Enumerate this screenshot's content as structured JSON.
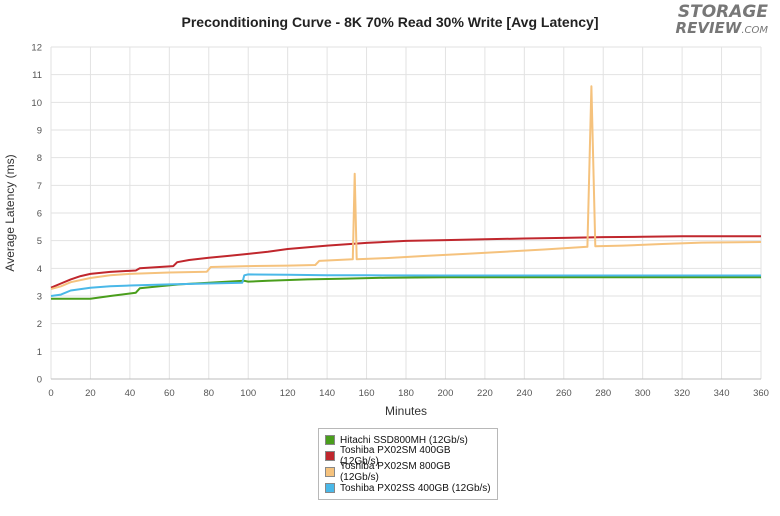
{
  "chart_data": {
    "type": "line",
    "title": "Preconditioning Curve - 8K 70% Read 30% Write [Avg Latency]",
    "xlabel": "Minutes",
    "ylabel": "Average Latency (ms)",
    "xlim": [
      0,
      360
    ],
    "ylim": [
      0,
      12
    ],
    "xticks": [
      0,
      20,
      40,
      60,
      80,
      100,
      120,
      140,
      160,
      180,
      200,
      220,
      240,
      260,
      280,
      300,
      320,
      340,
      360
    ],
    "yticks": [
      0,
      1,
      2,
      3,
      4,
      5,
      6,
      7,
      8,
      9,
      10,
      11,
      12
    ],
    "grid": true,
    "legend_position": "bottom-center",
    "series": [
      {
        "name": "Hitachi SSD800MH (12Gb/s)",
        "color": "#4a9e1c",
        "x": [
          0,
          10,
          20,
          30,
          43,
          45,
          55,
          65,
          80,
          90,
          98,
          100,
          110,
          130,
          150,
          170,
          200,
          240,
          280,
          320,
          360
        ],
        "y": [
          2.9,
          2.9,
          2.9,
          3.0,
          3.12,
          3.28,
          3.35,
          3.42,
          3.48,
          3.52,
          3.55,
          3.52,
          3.55,
          3.6,
          3.63,
          3.66,
          3.68,
          3.68,
          3.68,
          3.68,
          3.68
        ]
      },
      {
        "name": "Toshiba PX02SM 400GB (12Gb/s)",
        "color": "#c0272d",
        "x": [
          0,
          5,
          10,
          15,
          20,
          30,
          43,
          45,
          55,
          62,
          64,
          70,
          80,
          90,
          100,
          110,
          120,
          140,
          160,
          180,
          200,
          220,
          240,
          260,
          280,
          300,
          320,
          340,
          360
        ],
        "y": [
          3.3,
          3.45,
          3.6,
          3.72,
          3.8,
          3.87,
          3.92,
          4.0,
          4.05,
          4.08,
          4.22,
          4.3,
          4.38,
          4.45,
          4.52,
          4.6,
          4.7,
          4.82,
          4.92,
          4.99,
          5.02,
          5.05,
          5.08,
          5.1,
          5.13,
          5.14,
          5.16,
          5.16,
          5.16
        ]
      },
      {
        "name": "Toshiba PX02SM 800GB (12Gb/s)",
        "color": "#f5c27d",
        "x": [
          0,
          5,
          10,
          20,
          30,
          40,
          60,
          79,
          81,
          100,
          120,
          134,
          136,
          153,
          154,
          155,
          170,
          190,
          210,
          230,
          250,
          272,
          274,
          276,
          290,
          310,
          330,
          360
        ],
        "y": [
          3.25,
          3.35,
          3.5,
          3.65,
          3.75,
          3.8,
          3.85,
          3.88,
          4.05,
          4.08,
          4.1,
          4.12,
          4.27,
          4.33,
          7.42,
          4.33,
          4.37,
          4.45,
          4.52,
          4.6,
          4.68,
          4.78,
          10.58,
          4.8,
          4.82,
          4.88,
          4.93,
          4.95
        ]
      },
      {
        "name": "Toshiba PX02SS 400GB (12Gb/s)",
        "color": "#4ab8e8",
        "x": [
          0,
          5,
          10,
          20,
          30,
          40,
          60,
          80,
          97,
          98,
          100,
          120,
          140,
          160,
          200,
          240,
          280,
          320,
          360
        ],
        "y": [
          3.0,
          3.05,
          3.2,
          3.3,
          3.35,
          3.38,
          3.42,
          3.45,
          3.48,
          3.75,
          3.78,
          3.77,
          3.75,
          3.75,
          3.74,
          3.74,
          3.74,
          3.74,
          3.74
        ]
      }
    ]
  },
  "logo": {
    "line1": "STORAGE",
    "line2": "REVIEW",
    "suffix": ".COM"
  }
}
